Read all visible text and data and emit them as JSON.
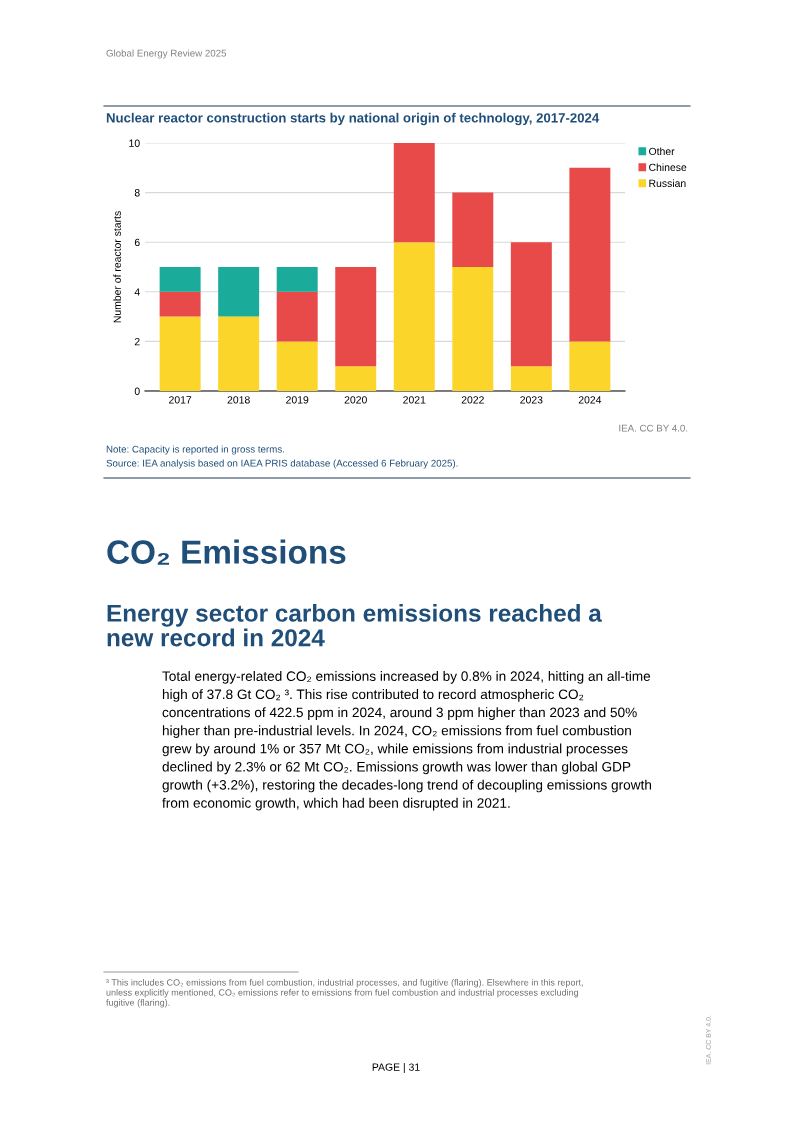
{
  "chart_data": {
    "type": "bar",
    "title": "Nuclear reactor construction starts by national origin of technology, 2017-2024",
    "ylabel": "Number of reactor starts",
    "categories": [
      "2017",
      "2018",
      "2019",
      "2020",
      "2021",
      "2022",
      "2023",
      "2024"
    ],
    "stacked": true,
    "series": [
      {
        "name": "Russian",
        "color": "#fcd52a",
        "values": [
          3,
          3,
          2,
          1,
          6,
          5,
          1,
          2
        ]
      },
      {
        "name": "Chinese",
        "color": "#e84a4a",
        "values": [
          1,
          0,
          2,
          4,
          4,
          3,
          5,
          7
        ]
      },
      {
        "name": "Other",
        "color": "#1aab9b",
        "values": [
          1,
          2,
          1,
          0,
          0,
          0,
          0,
          0
        ]
      }
    ],
    "ylim": [
      0,
      10
    ],
    "yticks": [
      0,
      2,
      4,
      6,
      8,
      10
    ],
    "grid": "y",
    "legend": "top right",
    "annotations": [
      "IEA. CC BY 4.0.",
      "Note: Capacity is reported in gross terms.",
      "Source: IEA analysis based on IAEA PRIS database (Accessed 6 February 2025).",
      "Global Energy Review 2025",
      "CO₂ Emissions",
      "Energy sector carbon emissions reached a\nnew record in 2024",
      "Total energy-related CO₂ emissions increased by 0.8% in 2024, hitting an all-time\nhigh of 37.8 Gt CO₂ ³. This rise contributed to record atmospheric CO₂\nconcentrations of 422.5 ppm in 2024, around 3 ppm higher than 2023 and 50%\nhigher than pre-industrial levels. In 2024, CO₂ emissions from fuel combustion\ngrew by around 1% or 357 Mt CO₂, while emissions from industrial processes\ndeclined by 2.3% or 62 Mt CO₂. Emissions growth was lower than global GDP\ngrowth (+3.2%), restoring the decades-long trend of decoupling emissions growth\nfrom economic growth, which had been disrupted in 2021.",
      "³ This includes CO₂ emissions from fuel combustion, industrial processes, and fugitive (flaring). Elsewhere in this report,\nunless explicitly mentioned, CO₂ emissions refer to emissions from fuel combustion and industrial processes excluding\nfugitive (flaring).",
      "PAGE | 31",
      "IEA. CC BY 4.0."
    ]
  }
}
